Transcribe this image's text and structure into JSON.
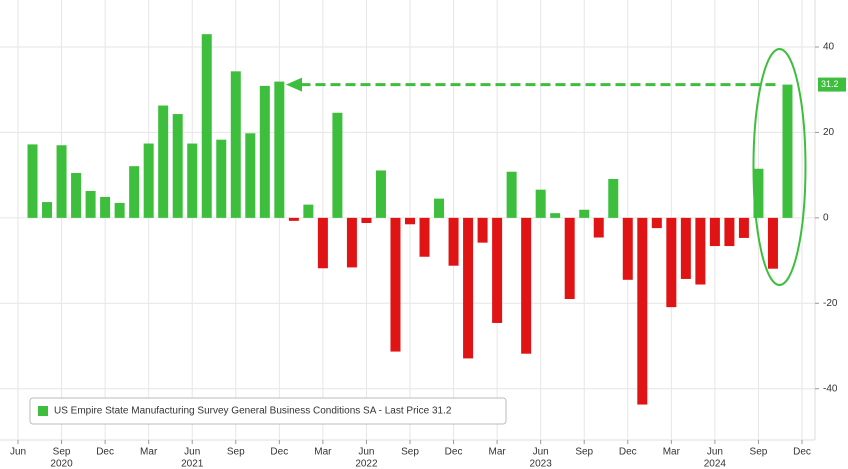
{
  "chart_data": {
    "type": "bar",
    "legend": "US Empire State Manufacturing Survey General Business Conditions SA - Last Price 31.2",
    "categories": [
      "Jun",
      null,
      null,
      "Sep",
      null,
      null,
      "Dec",
      null,
      null,
      "Mar",
      null,
      null,
      "Jun",
      null,
      null,
      "Sep",
      null,
      null,
      "Dec",
      null,
      null,
      "Mar",
      null,
      null,
      "Jun",
      null,
      null,
      "Sep",
      null,
      null,
      "Dec",
      null,
      null,
      "Mar",
      null,
      null,
      "Jun",
      null,
      null,
      "Sep",
      null,
      null,
      "Dec",
      null,
      null,
      "Mar",
      null,
      null,
      "Jun",
      null,
      null,
      "Sep",
      null,
      null,
      "Dec"
    ],
    "year_labels": [
      null,
      null,
      null,
      "2020",
      null,
      null,
      null,
      null,
      null,
      null,
      null,
      null,
      "2021",
      null,
      null,
      null,
      null,
      null,
      null,
      null,
      null,
      null,
      null,
      null,
      "2022",
      null,
      null,
      null,
      null,
      null,
      null,
      null,
      null,
      null,
      null,
      null,
      "2023",
      null,
      null,
      null,
      null,
      null,
      null,
      null,
      null,
      null,
      null,
      null,
      "2024",
      null,
      null,
      null,
      null,
      null,
      null
    ],
    "values": [
      null,
      17.2,
      3.7,
      17.0,
      10.5,
      6.3,
      4.9,
      3.5,
      12.1,
      17.4,
      26.3,
      24.3,
      17.4,
      43.0,
      18.3,
      34.3,
      19.8,
      30.9,
      31.9,
      -0.7,
      3.1,
      -11.8,
      24.6,
      -11.6,
      -1.2,
      11.1,
      -31.3,
      -1.5,
      -9.1,
      4.5,
      -11.2,
      -32.9,
      -5.8,
      -24.6,
      10.8,
      -31.8,
      6.6,
      1.1,
      -19.0,
      1.9,
      -4.6,
      9.1,
      -14.5,
      -43.7,
      -2.4,
      -20.9,
      -14.3,
      -15.6,
      -6.6,
      -6.6,
      -4.7,
      11.5,
      -11.9,
      31.2,
      null
    ],
    "positive_color": "#3dbf3d",
    "negative_color": "#e01414",
    "ylim": [
      -52,
      51
    ],
    "yticks": [
      -40,
      -20,
      0,
      20,
      40
    ],
    "grid": true
  }
}
